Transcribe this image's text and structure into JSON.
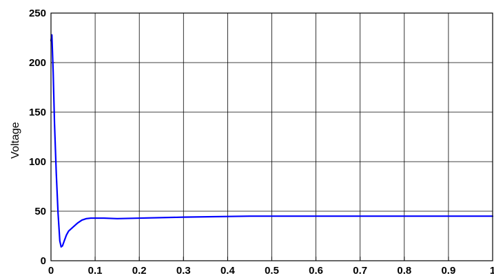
{
  "chart_data": {
    "type": "line",
    "title": "",
    "xlabel": "",
    "ylabel": "Voltage",
    "xlim": [
      0,
      1
    ],
    "ylim": [
      0,
      250
    ],
    "grid": true,
    "x_ticks": [
      0,
      0.1,
      0.2,
      0.3,
      0.4,
      0.5,
      0.6,
      0.7,
      0.8,
      0.9,
      1
    ],
    "x_tick_labels": [
      "0",
      "0.1",
      "0.2",
      "0.3",
      "0.4",
      "0.5",
      "0.6",
      "0.7",
      "0.8",
      "0.9",
      "1"
    ],
    "y_ticks": [
      0,
      50,
      100,
      150,
      200,
      250
    ],
    "y_tick_labels": [
      "0",
      "50",
      "100",
      "150",
      "200",
      "250"
    ],
    "line_color": "#0000ff",
    "series": [
      {
        "x": [
          0,
          0.002,
          0.005,
          0.008,
          0.012,
          0.016,
          0.02,
          0.023,
          0.026,
          0.03,
          0.035,
          0.04,
          0.05,
          0.06,
          0.07,
          0.08,
          0.09,
          0.1,
          0.12,
          0.15,
          0.2,
          0.3,
          0.45,
          0.5,
          0.6,
          0.7,
          0.8,
          0.9,
          1.0
        ],
        "y": [
          222,
          228,
          190,
          138,
          88,
          48,
          20,
          14,
          15,
          20,
          26,
          30,
          34,
          38,
          41,
          42.5,
          43,
          43,
          43,
          42.5,
          43,
          44,
          45,
          45,
          45,
          45,
          45,
          45,
          45
        ]
      }
    ]
  }
}
